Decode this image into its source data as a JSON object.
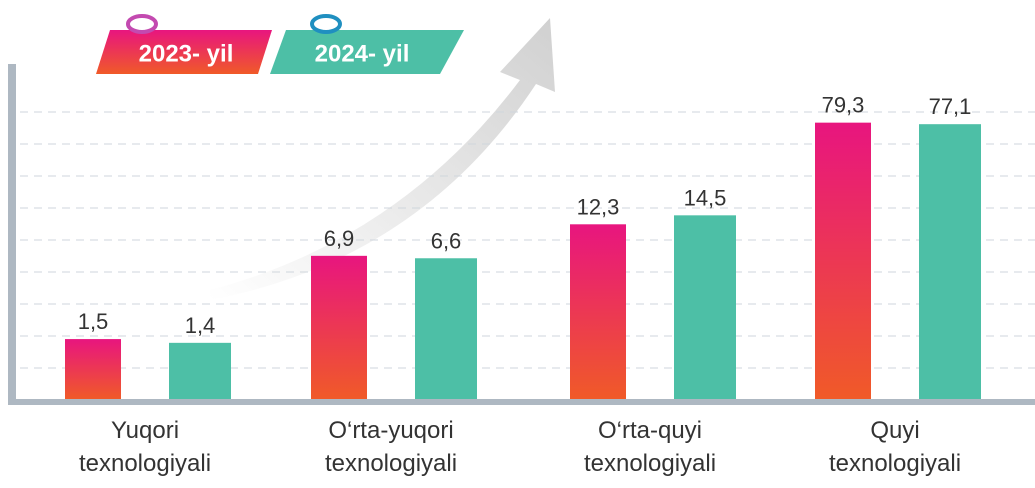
{
  "chart_data": {
    "type": "bar",
    "log_scale": true,
    "categories": [
      "Yuqori texnologiyali",
      "O‘rta-yuqori texnologiyali",
      "O‘rta-quyi texnologiyali",
      "Quyi texnologiyali"
    ],
    "ylim": [
      0.5,
      100
    ],
    "series": [
      {
        "name": "2023- yil",
        "color": "url(#g23)",
        "values": [
          1.5,
          6.9,
          12.3,
          79.3
        ],
        "value_labels": [
          "1,5",
          "6,9",
          "12,3",
          "79,3"
        ]
      },
      {
        "name": "2024- yil",
        "color": "#4dbfa6",
        "values": [
          1.4,
          6.6,
          14.5,
          77.1
        ],
        "value_labels": [
          "1,4",
          "6,6",
          "14,5",
          "77,1"
        ]
      }
    ]
  }
}
